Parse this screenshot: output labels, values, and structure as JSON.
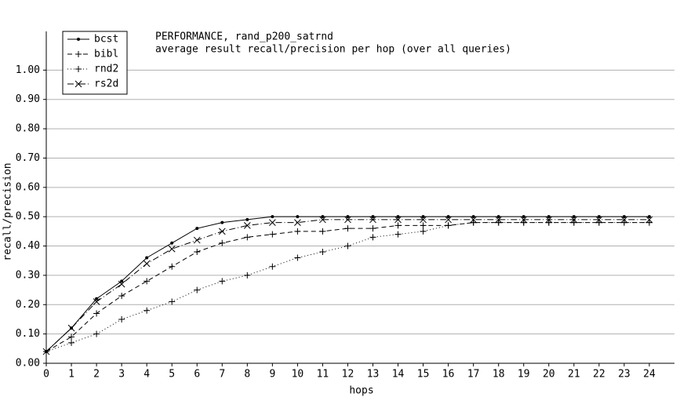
{
  "chart_data": {
    "type": "line",
    "title": "PERFORMANCE, rand_p200_satrnd",
    "subtitle": "average result recall/precision per hop (over all queries)",
    "x_label": "hops",
    "y_label": "recall/precision",
    "x": [
      0,
      1,
      2,
      3,
      4,
      5,
      6,
      7,
      8,
      9,
      10,
      11,
      12,
      13,
      14,
      15,
      16,
      17,
      18,
      19,
      20,
      21,
      22,
      23,
      24
    ],
    "xlim": [
      0,
      25
    ],
    "xticks": [
      0,
      1,
      2,
      3,
      4,
      5,
      6,
      7,
      8,
      9,
      10,
      11,
      12,
      13,
      14,
      15,
      16,
      17,
      18,
      19,
      20,
      21,
      22,
      23,
      24
    ],
    "ylim": [
      0,
      1.1
    ],
    "yticks": [
      {
        "value": 0,
        "label": "0.00"
      },
      {
        "value": 0.1,
        "label": "0.10"
      },
      {
        "value": 0.2,
        "label": "0.20"
      },
      {
        "value": 0.3,
        "label": "0.30"
      },
      {
        "value": 0.4,
        "label": "0.40"
      },
      {
        "value": 0.5,
        "label": "0.50"
      },
      {
        "value": 0.6,
        "label": "0.60"
      },
      {
        "value": 0.7,
        "label": "0.70"
      },
      {
        "value": 0.8,
        "label": "0.80"
      },
      {
        "value": 0.9,
        "label": "0.90"
      },
      {
        "value": 1,
        "label": "1.00"
      }
    ],
    "grid": true,
    "legend": "top-left",
    "series": [
      {
        "name": "bcst",
        "color": "#000000",
        "dash": "none",
        "marker": "dot",
        "values": [
          0.04,
          0.12,
          0.22,
          0.28,
          0.36,
          0.41,
          0.46,
          0.48,
          0.49,
          0.5,
          0.5,
          0.5,
          0.5,
          0.5,
          0.5,
          0.5,
          0.5,
          0.5,
          0.5,
          0.5,
          0.5,
          0.5,
          0.5,
          0.5,
          0.5
        ]
      },
      {
        "name": "bibl",
        "color": "#000000",
        "dash": "6 4",
        "marker": "plus",
        "values": [
          0.04,
          0.09,
          0.17,
          0.23,
          0.28,
          0.33,
          0.38,
          0.41,
          0.43,
          0.44,
          0.45,
          0.45,
          0.46,
          0.46,
          0.47,
          0.47,
          0.47,
          0.48,
          0.48,
          0.48,
          0.48,
          0.48,
          0.48,
          0.48,
          0.48
        ]
      },
      {
        "name": "rnd2",
        "color": "#000000",
        "dash": "1 3",
        "marker": "plus",
        "values": [
          0.04,
          0.07,
          0.1,
          0.15,
          0.18,
          0.21,
          0.25,
          0.28,
          0.3,
          0.33,
          0.36,
          0.38,
          0.4,
          0.43,
          0.44,
          0.45,
          0.47,
          0.48,
          0.48,
          0.48,
          0.48,
          0.48,
          0.48,
          0.48,
          0.48
        ]
      },
      {
        "name": "rs2d",
        "color": "#000000",
        "dash": "8 3 1 3",
        "marker": "cross",
        "values": [
          0.04,
          0.12,
          0.21,
          0.27,
          0.34,
          0.39,
          0.42,
          0.45,
          0.47,
          0.48,
          0.48,
          0.49,
          0.49,
          0.49,
          0.49,
          0.49,
          0.49,
          0.49,
          0.49,
          0.49,
          0.49,
          0.49,
          0.49,
          0.49,
          0.49
        ]
      }
    ]
  }
}
